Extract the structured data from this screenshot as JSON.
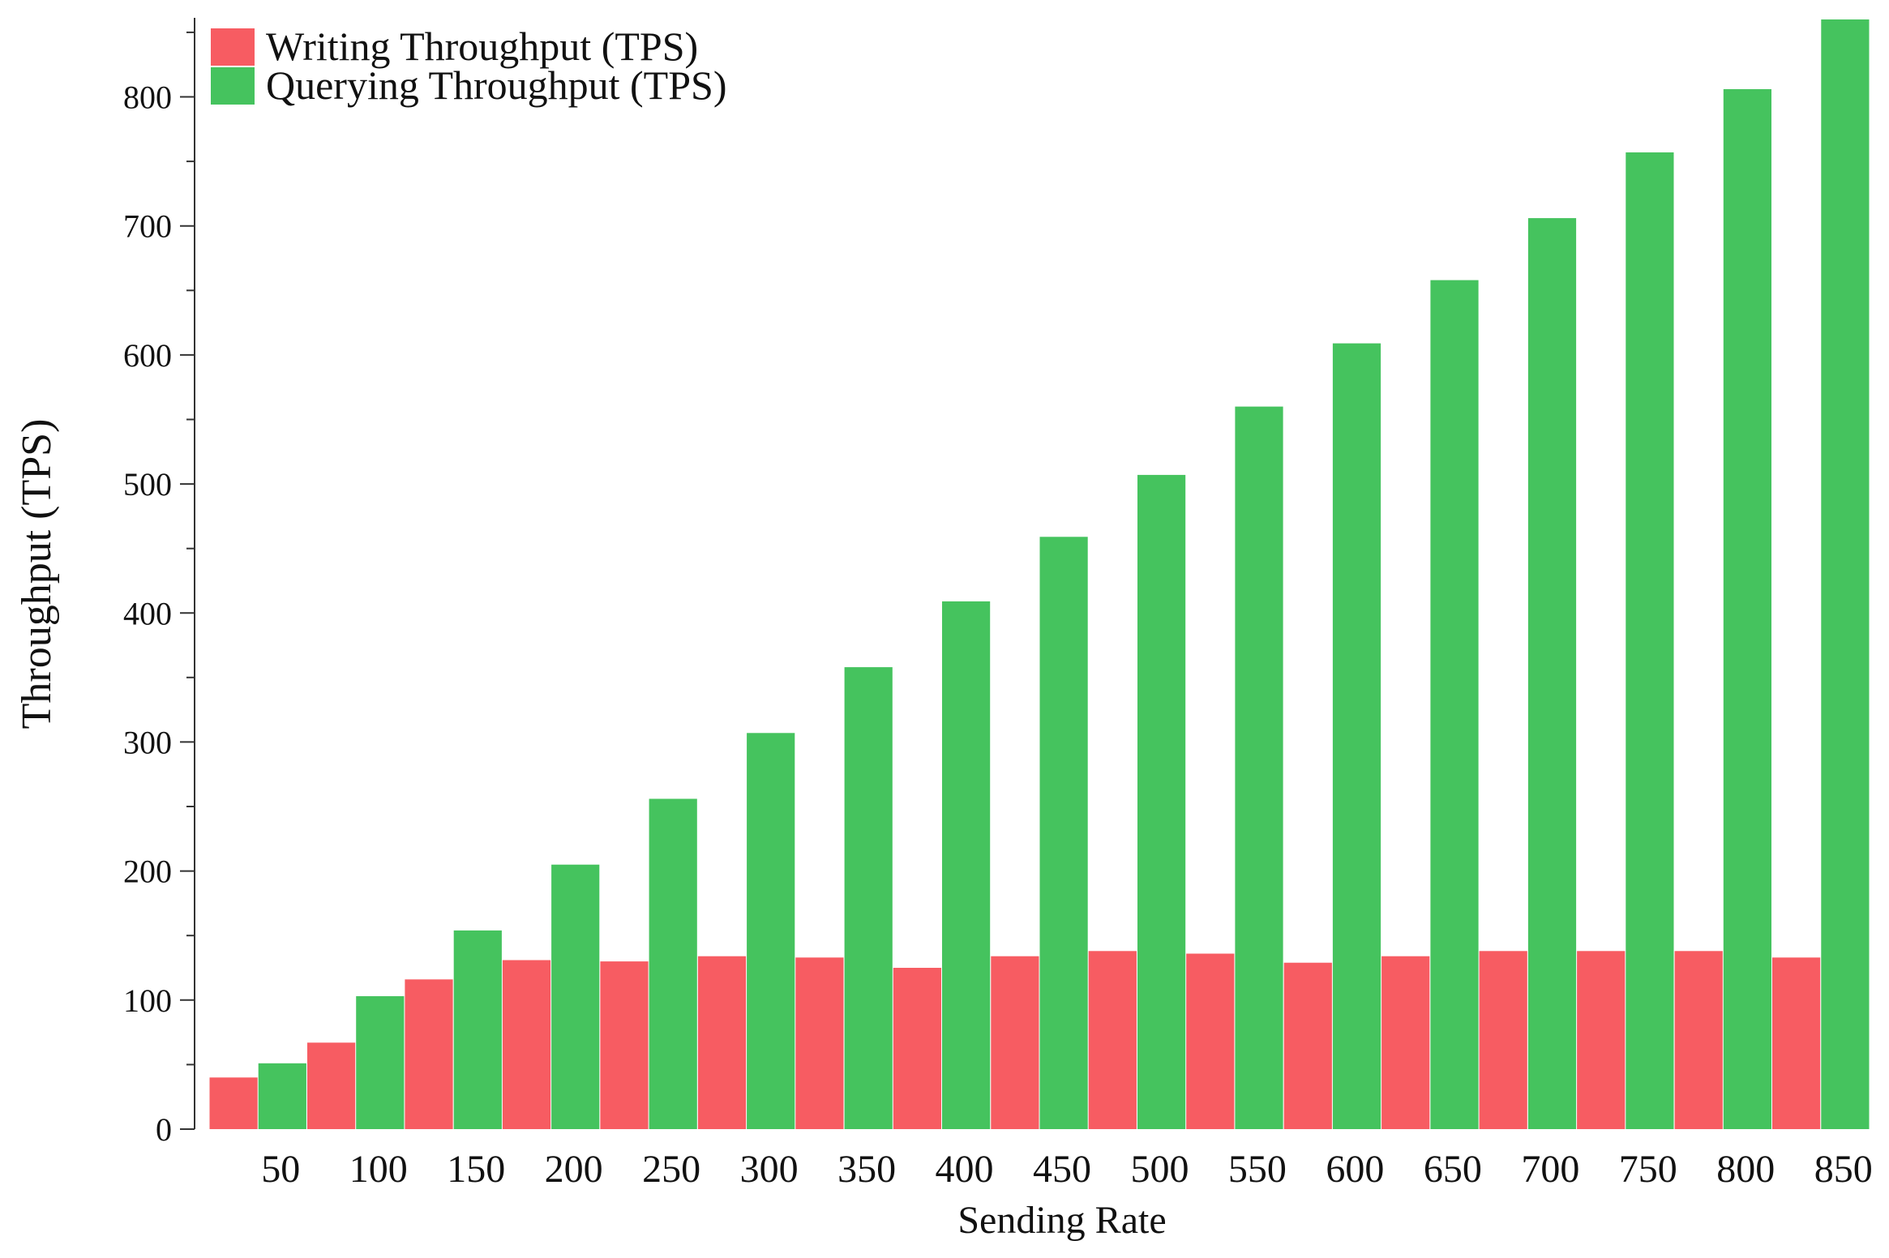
{
  "chart_data": {
    "type": "bar",
    "title": "",
    "xlabel": "Sending Rate",
    "ylabel": "Throughput (TPS)",
    "categories": [
      "50",
      "100",
      "150",
      "200",
      "250",
      "300",
      "350",
      "400",
      "450",
      "500",
      "550",
      "600",
      "650",
      "700",
      "750",
      "800",
      "850"
    ],
    "ylim": [
      0,
      860
    ],
    "yticks": [
      0,
      100,
      200,
      300,
      400,
      500,
      600,
      700,
      800
    ],
    "grid": false,
    "legend_position": "top-left",
    "series": [
      {
        "name": "Writing Throughput (TPS)",
        "color": "#f75c62",
        "values": [
          40,
          67,
          116,
          131,
          130,
          134,
          133,
          125,
          134,
          138,
          136,
          129,
          134,
          138,
          138,
          138,
          133
        ]
      },
      {
        "name": "Querying Throughput (TPS)",
        "color": "#45c35e",
        "values": [
          51,
          103,
          154,
          205,
          256,
          307,
          358,
          409,
          459,
          507,
          560,
          609,
          658,
          706,
          757,
          806,
          860
        ]
      }
    ]
  }
}
